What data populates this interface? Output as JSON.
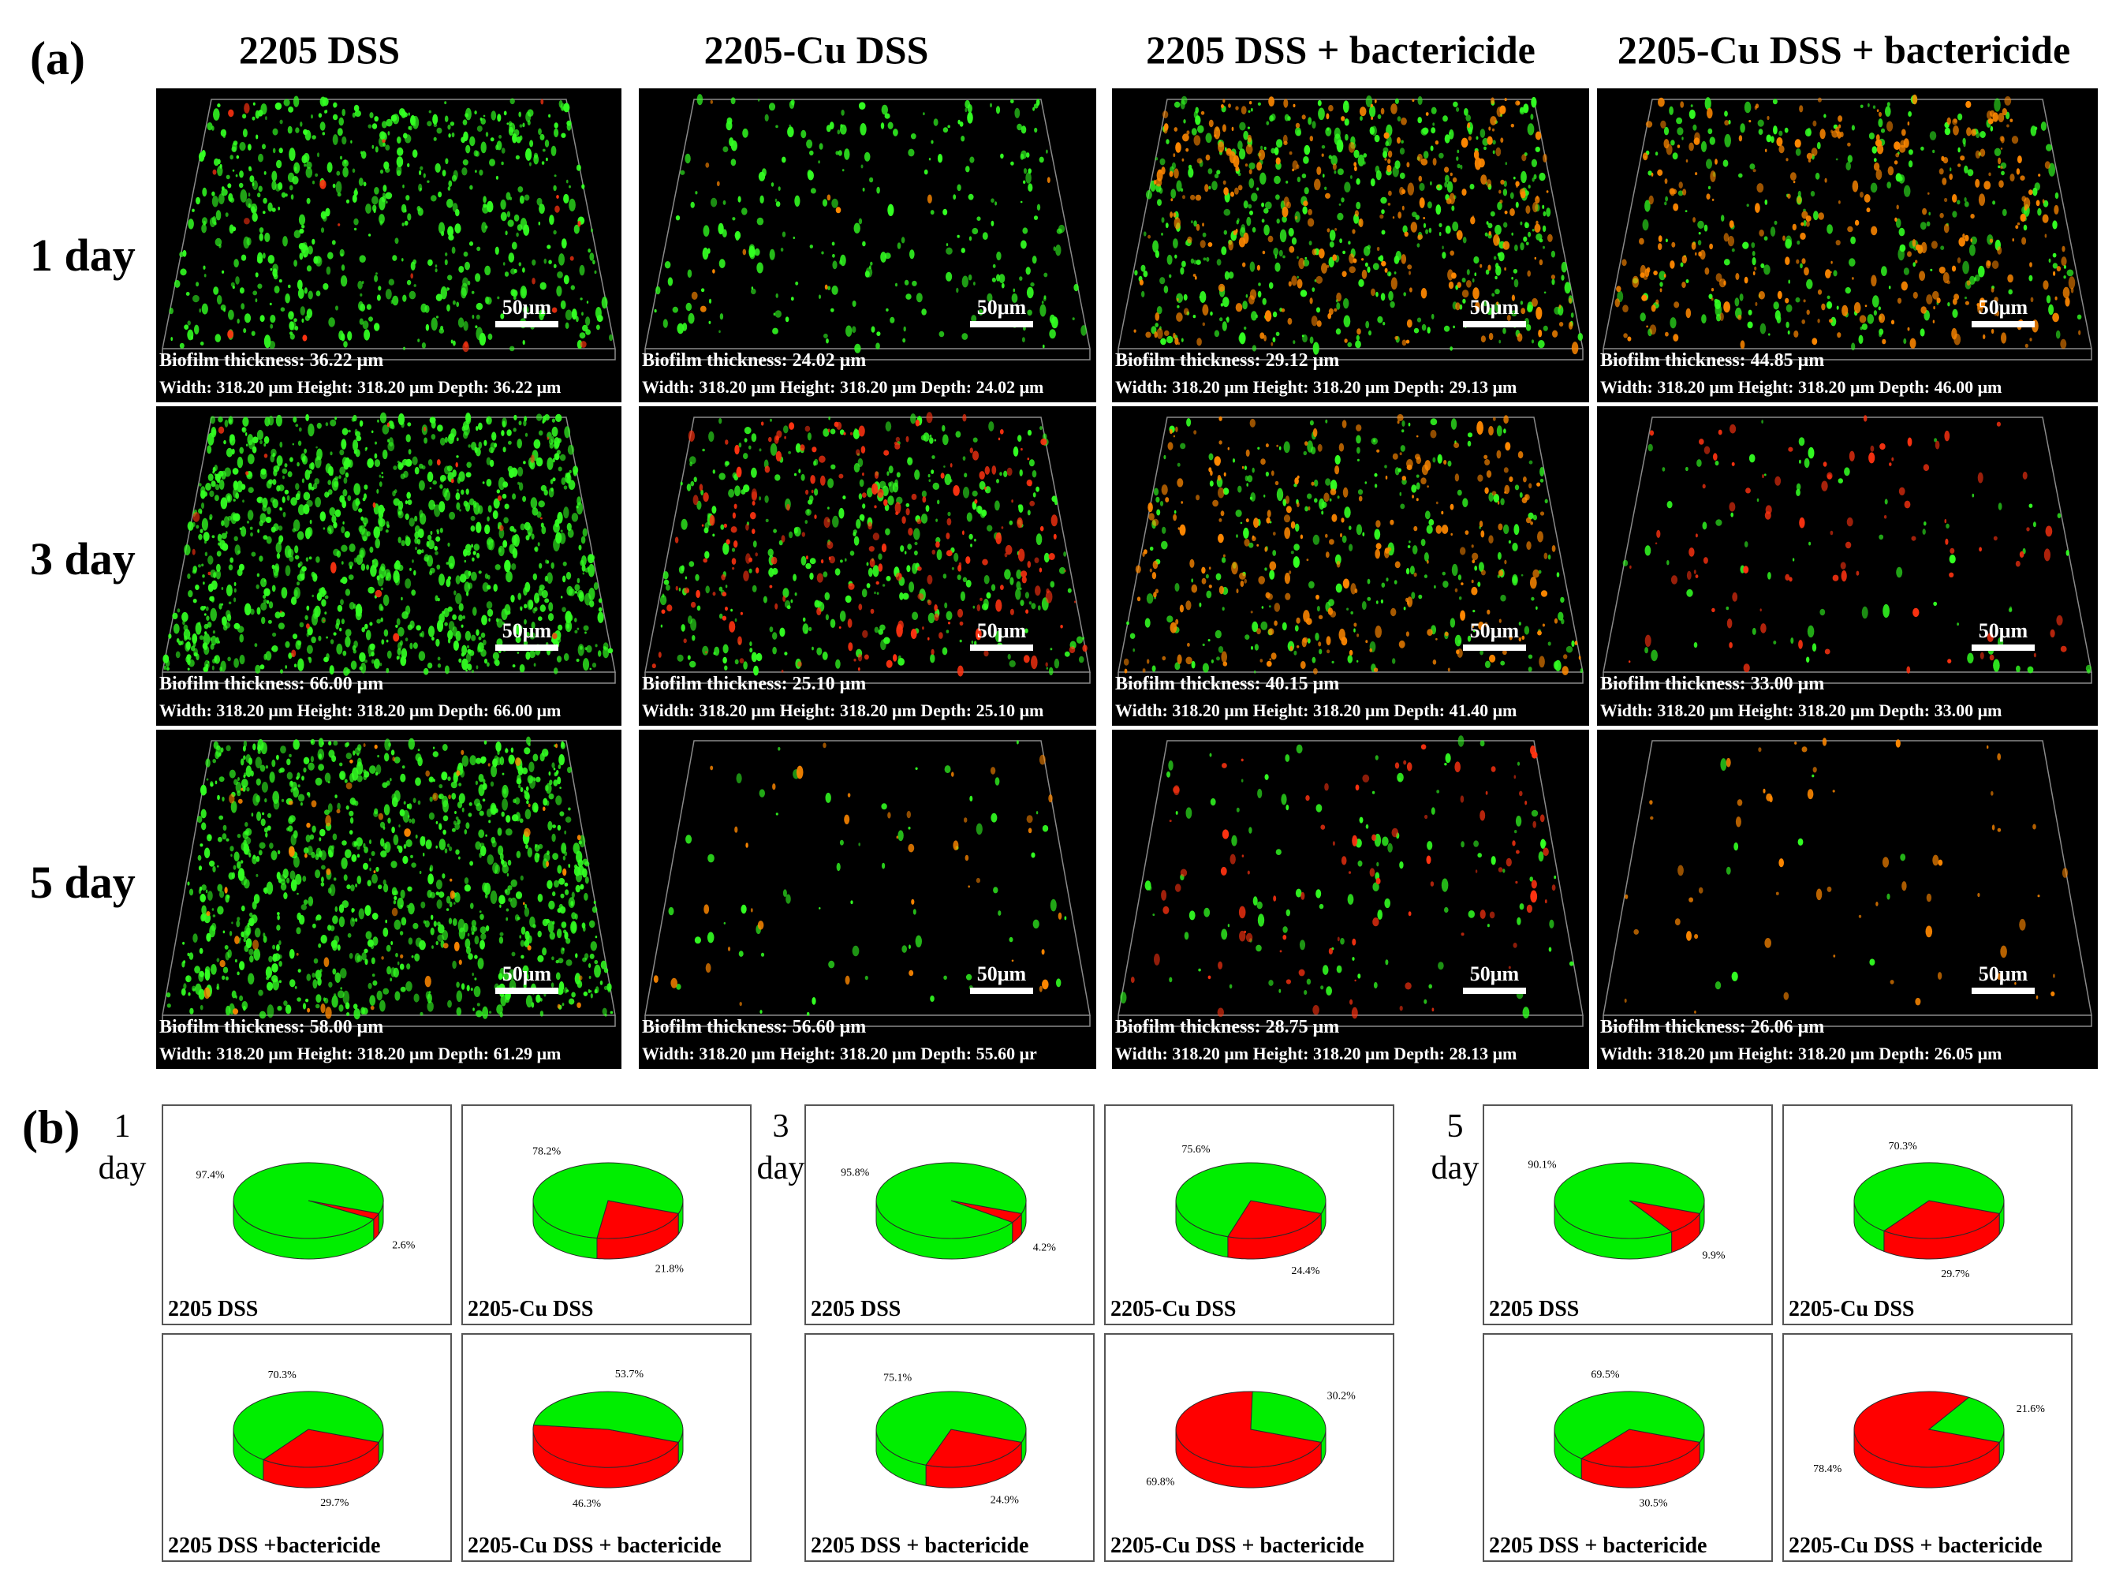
{
  "panel_a": {
    "label": "(a)",
    "columns": [
      "2205 DSS",
      "2205-Cu DSS",
      "2205 DSS + bactericide",
      "2205-Cu DSS + bactericide"
    ],
    "rows": [
      "1 day",
      "3 day",
      "5 day"
    ],
    "scale_label": "50μm",
    "cells": [
      [
        {
          "thickness": "Biofilm thickness: 36.22 μm",
          "dims": "Width: 318.20 μm Height: 318.20 μm Depth: 36.22 μm",
          "green": 620,
          "red": 20
        },
        {
          "thickness": "Biofilm thickness: 24.02 μm",
          "dims": "Width: 318.20 μm Height: 318.20 μm Depth: 24.02 μm",
          "green": 260,
          "red": 12
        },
        {
          "thickness": "Biofilm thickness: 29.12 μm",
          "dims": "Width: 318.20 μm Height: 318.20 μm Depth: 29.13 μm",
          "green": 480,
          "red": 300
        },
        {
          "thickness": "Biofilm thickness: 44.85 μm",
          "dims": "Width: 318.20 μm Height: 318.20 μm Depth: 46.00 μm",
          "green": 260,
          "red": 320
        }
      ],
      [
        {
          "thickness": "Biofilm thickness: 66.00 μm",
          "dims": "Width: 318.20 μm Height: 318.20 μm Depth: 66.00 μm",
          "green": 1100,
          "red": 25
        },
        {
          "thickness": "Biofilm thickness: 25.10 μm",
          "dims": "Width: 318.20 μm Height: 318.20 μm Depth: 25.10 μm",
          "green": 380,
          "red": 220
        },
        {
          "thickness": "Biofilm thickness: 40.15 μm",
          "dims": "Width: 318.20 μm Height: 318.20 μm Depth: 41.40 μm",
          "green": 260,
          "red": 280
        },
        {
          "thickness": "Biofilm thickness: 33.00 μm",
          "dims": "Width: 318.20 μm Height: 318.20 μm Depth: 33.00 μm",
          "green": 70,
          "red": 90
        }
      ],
      [
        {
          "thickness": "Biofilm thickness: 58.00 μm",
          "dims": "Width: 318.20 μm Height: 318.20 μm Depth: 61.29 μm",
          "green": 1000,
          "red": 60
        },
        {
          "thickness": "Biofilm thickness: 56.60 μm",
          "dims": "Width: 318.20 μm Height: 318.20 μm Depth: 55.60 μr",
          "green": 60,
          "red": 40
        },
        {
          "thickness": "Biofilm thickness: 28.75 μm",
          "dims": "Width: 318.20 μm Height: 318.20 μm Depth: 28.13 μm",
          "green": 110,
          "red": 90
        },
        {
          "thickness": "Biofilm thickness: 26.06 μm",
          "dims": "Width: 318.20 μm Height: 318.20 μm Depth: 26.05 μm",
          "green": 10,
          "red": 60
        }
      ]
    ]
  },
  "panel_b": {
    "label": "(b)",
    "colors": {
      "live": "#00ee00",
      "dead": "#ff0000"
    },
    "groups": [
      {
        "day": "1 day",
        "pies": [
          {
            "label": "2205 DSS",
            "live": 97.4,
            "dead": 2.6,
            "live_text": "97.4%",
            "dead_text": "2.6%"
          },
          {
            "label": "2205-Cu DSS",
            "live": 78.2,
            "dead": 21.8,
            "live_text": "78.2%",
            "dead_text": "21.8%"
          },
          {
            "label": "2205 DSS +bactericide",
            "live": 70.3,
            "dead": 29.7,
            "live_text": "70.3%",
            "dead_text": "29.7%"
          },
          {
            "label": "2205-Cu DSS + bactericide",
            "live": 53.7,
            "dead": 46.3,
            "live_text": "53.7%",
            "dead_text": "46.3%"
          }
        ]
      },
      {
        "day": "3 day",
        "pies": [
          {
            "label": "2205 DSS",
            "live": 95.8,
            "dead": 4.2,
            "live_text": "95.8%",
            "dead_text": "4.2%"
          },
          {
            "label": "2205-Cu DSS",
            "live": 75.6,
            "dead": 24.4,
            "live_text": "75.6%",
            "dead_text": "24.4%"
          },
          {
            "label": "2205 DSS + bactericide",
            "live": 75.1,
            "dead": 24.9,
            "live_text": "75.1%",
            "dead_text": "24.9%"
          },
          {
            "label": "2205-Cu DSS + bactericide",
            "live": 30.2,
            "dead": 69.8,
            "live_text": "30.2%",
            "dead_text": "69.8%"
          }
        ]
      },
      {
        "day": "5 day",
        "pies": [
          {
            "label": "2205 DSS",
            "live": 90.1,
            "dead": 9.9,
            "live_text": "90.1%",
            "dead_text": "9.9%"
          },
          {
            "label": "2205-Cu DSS",
            "live": 70.3,
            "dead": 29.7,
            "live_text": "70.3%",
            "dead_text": "29.7%"
          },
          {
            "label": "2205 DSS + bactericide",
            "live": 69.5,
            "dead": 30.5,
            "live_text": "69.5%",
            "dead_text": "30.5%"
          },
          {
            "label": "2205-Cu DSS + bactericide",
            "live": 21.6,
            "dead": 78.4,
            "live_text": "21.6%",
            "dead_text": "78.4%"
          }
        ]
      }
    ]
  }
}
